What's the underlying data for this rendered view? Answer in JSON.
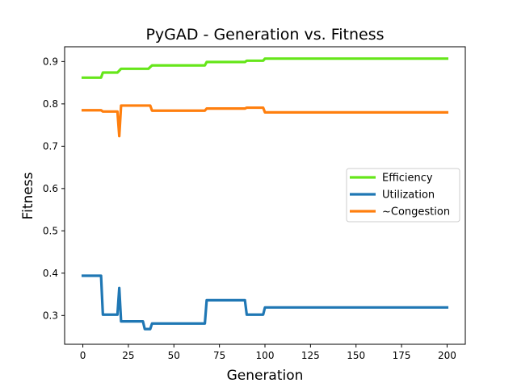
{
  "chart_data": {
    "type": "line",
    "title": "PyGAD - Generation vs. Fitness",
    "xlabel": "Generation",
    "ylabel": "Fitness",
    "xlim": [
      -10,
      210
    ],
    "ylim": [
      0.232,
      0.935
    ],
    "xticks": [
      0,
      25,
      50,
      75,
      100,
      125,
      150,
      175,
      200
    ],
    "xtick_labels": [
      "0",
      "25",
      "50",
      "75",
      "100",
      "125",
      "150",
      "175",
      "200"
    ],
    "yticks": [
      0.3,
      0.4,
      0.5,
      0.6,
      0.7,
      0.8,
      0.9
    ],
    "ytick_labels": [
      "0.3",
      "0.4",
      "0.5",
      "0.6",
      "0.7",
      "0.8",
      "0.9"
    ],
    "grid": false,
    "legend_position": "center-right",
    "series": [
      {
        "name": "Efficiency",
        "color": "#66e61a",
        "points": [
          [
            0,
            0.862
          ],
          [
            10,
            0.862
          ],
          [
            11,
            0.874
          ],
          [
            19,
            0.874
          ],
          [
            21,
            0.883
          ],
          [
            36,
            0.883
          ],
          [
            38,
            0.891
          ],
          [
            67,
            0.891
          ],
          [
            68,
            0.899
          ],
          [
            89,
            0.899
          ],
          [
            90,
            0.902
          ],
          [
            99,
            0.902
          ],
          [
            100,
            0.907
          ],
          [
            200,
            0.907
          ]
        ]
      },
      {
        "name": "Utilization",
        "color": "#1f77b4",
        "points": [
          [
            0,
            0.394
          ],
          [
            10,
            0.394
          ],
          [
            11,
            0.302
          ],
          [
            19,
            0.302
          ],
          [
            20,
            0.365
          ],
          [
            21,
            0.286
          ],
          [
            33,
            0.286
          ],
          [
            34,
            0.268
          ],
          [
            37,
            0.268
          ],
          [
            38,
            0.281
          ],
          [
            67,
            0.281
          ],
          [
            68,
            0.336
          ],
          [
            89,
            0.336
          ],
          [
            90,
            0.302
          ],
          [
            99,
            0.302
          ],
          [
            100,
            0.319
          ],
          [
            200,
            0.319
          ]
        ]
      },
      {
        "name": "~Congestion",
        "color": "#ff7f0e",
        "points": [
          [
            0,
            0.785
          ],
          [
            10,
            0.785
          ],
          [
            11,
            0.782
          ],
          [
            19,
            0.782
          ],
          [
            20,
            0.724
          ],
          [
            21,
            0.796
          ],
          [
            37,
            0.796
          ],
          [
            38,
            0.784
          ],
          [
            67,
            0.784
          ],
          [
            68,
            0.789
          ],
          [
            89,
            0.789
          ],
          [
            90,
            0.791
          ],
          [
            99,
            0.791
          ],
          [
            100,
            0.78
          ],
          [
            200,
            0.78
          ]
        ]
      }
    ]
  }
}
